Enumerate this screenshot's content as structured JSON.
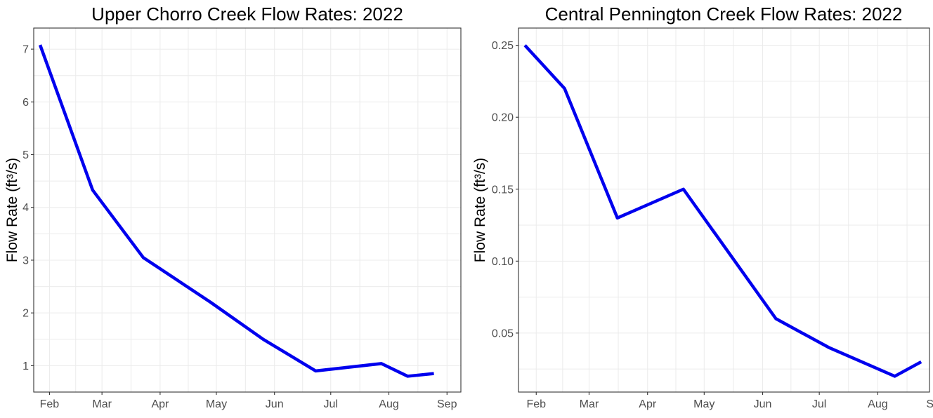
{
  "chart_data": [
    {
      "type": "line",
      "title": "Upper Chorro Creek Flow Rates: 2022",
      "xlabel": "",
      "ylabel": "Flow Rate (ft³/s)",
      "x_ticks": [
        "Feb",
        "Mar",
        "Apr",
        "May",
        "Jun",
        "Jul",
        "Aug",
        "Sep"
      ],
      "ylim": [
        0.5,
        7.4
      ],
      "y_ticks": [
        1,
        2,
        3,
        4,
        5,
        6,
        7
      ],
      "grid": true,
      "line_color": "#0000ee",
      "series": [
        {
          "x": [
            "2022-01-27",
            "2022-02-24",
            "2022-03-23",
            "2022-04-28",
            "2022-05-26",
            "2022-06-23",
            "2022-07-28",
            "2022-08-11",
            "2022-08-25"
          ],
          "y": [
            7.08,
            4.33,
            3.05,
            2.2,
            1.5,
            0.9,
            1.04,
            0.8,
            0.85
          ]
        }
      ]
    },
    {
      "type": "line",
      "title": "Central Pennington Creek Flow Rates: 2022",
      "xlabel": "",
      "ylabel": "Flow Rate (ft³/s)",
      "x_ticks": [
        "Feb",
        "Mar",
        "Apr",
        "May",
        "Jun",
        "Jul",
        "Aug",
        "Sep"
      ],
      "ylim": [
        0.009,
        0.262
      ],
      "y_ticks": [
        "0.05",
        "0.10",
        "0.15",
        "0.20",
        "0.25"
      ],
      "grid": true,
      "line_color": "#0000ee",
      "series": [
        {
          "x": [
            "2022-01-26",
            "2022-02-16",
            "2022-03-16",
            "2022-04-20",
            "2022-06-08",
            "2022-07-06",
            "2022-08-10",
            "2022-08-24"
          ],
          "y": [
            0.25,
            0.22,
            0.13,
            0.15,
            0.06,
            0.04,
            0.02,
            0.03
          ]
        }
      ]
    }
  ]
}
